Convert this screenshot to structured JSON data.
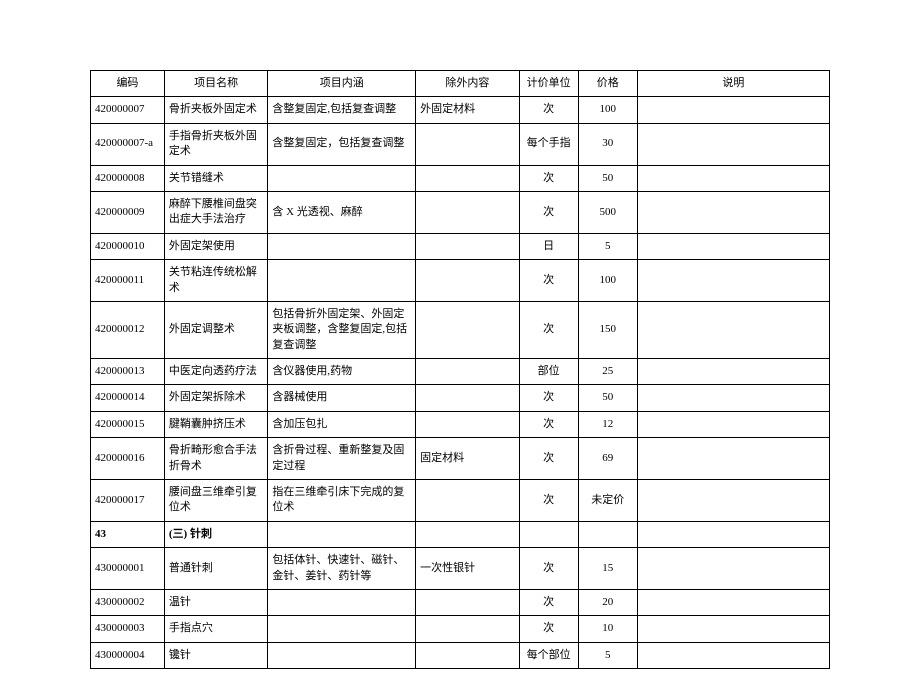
{
  "headers": {
    "code": "编码",
    "name": "项目名称",
    "content": "项目内涵",
    "exclude": "除外内容",
    "unit": "计价单位",
    "price": "价格",
    "desc": "说明"
  },
  "rows": [
    {
      "code": "420000007",
      "name": "骨折夹板外固定术",
      "content": "含整复固定,包括复查调整",
      "exclude": "外固定材料",
      "unit": "次",
      "price": "100",
      "desc": ""
    },
    {
      "code": "420000007-a",
      "name": "手指骨折夹板外固定术",
      "content": "含整复固定，包括复查调整",
      "exclude": "",
      "unit": "每个手指",
      "price": "30",
      "desc": ""
    },
    {
      "code": "420000008",
      "name": "关节错缝术",
      "content": "",
      "exclude": "",
      "unit": "次",
      "price": "50",
      "desc": ""
    },
    {
      "code": "420000009",
      "name": "麻醉下腰椎间盘突出症大手法治疗",
      "content": "含 X 光透视、麻醉",
      "exclude": "",
      "unit": "次",
      "price": "500",
      "desc": ""
    },
    {
      "code": "420000010",
      "name": "外固定架使用",
      "content": "",
      "exclude": "",
      "unit": "日",
      "price": "5",
      "desc": ""
    },
    {
      "code": "420000011",
      "name": "关节粘连传统松解术",
      "content": "",
      "exclude": "",
      "unit": "次",
      "price": "100",
      "desc": ""
    },
    {
      "code": "420000012",
      "name": "外固定调整术",
      "content": "包括骨折外固定架、外固定夹板调整，含整复固定,包括复查调整",
      "exclude": "",
      "unit": "次",
      "price": "150",
      "desc": ""
    },
    {
      "code": "420000013",
      "name": "中医定向透药疗法",
      "content": "含仪器使用,药物",
      "exclude": "",
      "unit": "部位",
      "price": "25",
      "desc": ""
    },
    {
      "code": "420000014",
      "name": "外固定架拆除术",
      "content": "含器械使用",
      "exclude": "",
      "unit": "次",
      "price": "50",
      "desc": ""
    },
    {
      "code": "420000015",
      "name": "腱鞘囊肿挤压术",
      "content": "含加压包扎",
      "exclude": "",
      "unit": "次",
      "price": "12",
      "desc": ""
    },
    {
      "code": "420000016",
      "name": "骨折畸形愈合手法折骨术",
      "content": "含折骨过程、重新整复及固定过程",
      "exclude": "固定材料",
      "unit": "次",
      "price": "69",
      "desc": ""
    },
    {
      "code": "420000017",
      "name": "腰间盘三维牵引复位术",
      "content": "指在三维牵引床下完成的复位术",
      "exclude": "",
      "unit": "次",
      "price": "未定价",
      "desc": ""
    },
    {
      "code": "43",
      "name": "(三) 针刺",
      "content": "",
      "exclude": "",
      "unit": "",
      "price": "",
      "desc": "",
      "section": true
    },
    {
      "code": "430000001",
      "name": "普通针刺",
      "content": "包括体针、快速针、磁针、金针、姜针、药针等",
      "exclude": "一次性银针",
      "unit": "次",
      "price": "15",
      "desc": ""
    },
    {
      "code": "430000002",
      "name": "温针",
      "content": "",
      "exclude": "",
      "unit": "次",
      "price": "20",
      "desc": ""
    },
    {
      "code": "430000003",
      "name": "手指点穴",
      "content": "",
      "exclude": "",
      "unit": "次",
      "price": "10",
      "desc": ""
    },
    {
      "code": "430000004",
      "name": "镵针",
      "content": "",
      "exclude": "",
      "unit": "每个部位",
      "price": "5",
      "desc": ""
    }
  ]
}
